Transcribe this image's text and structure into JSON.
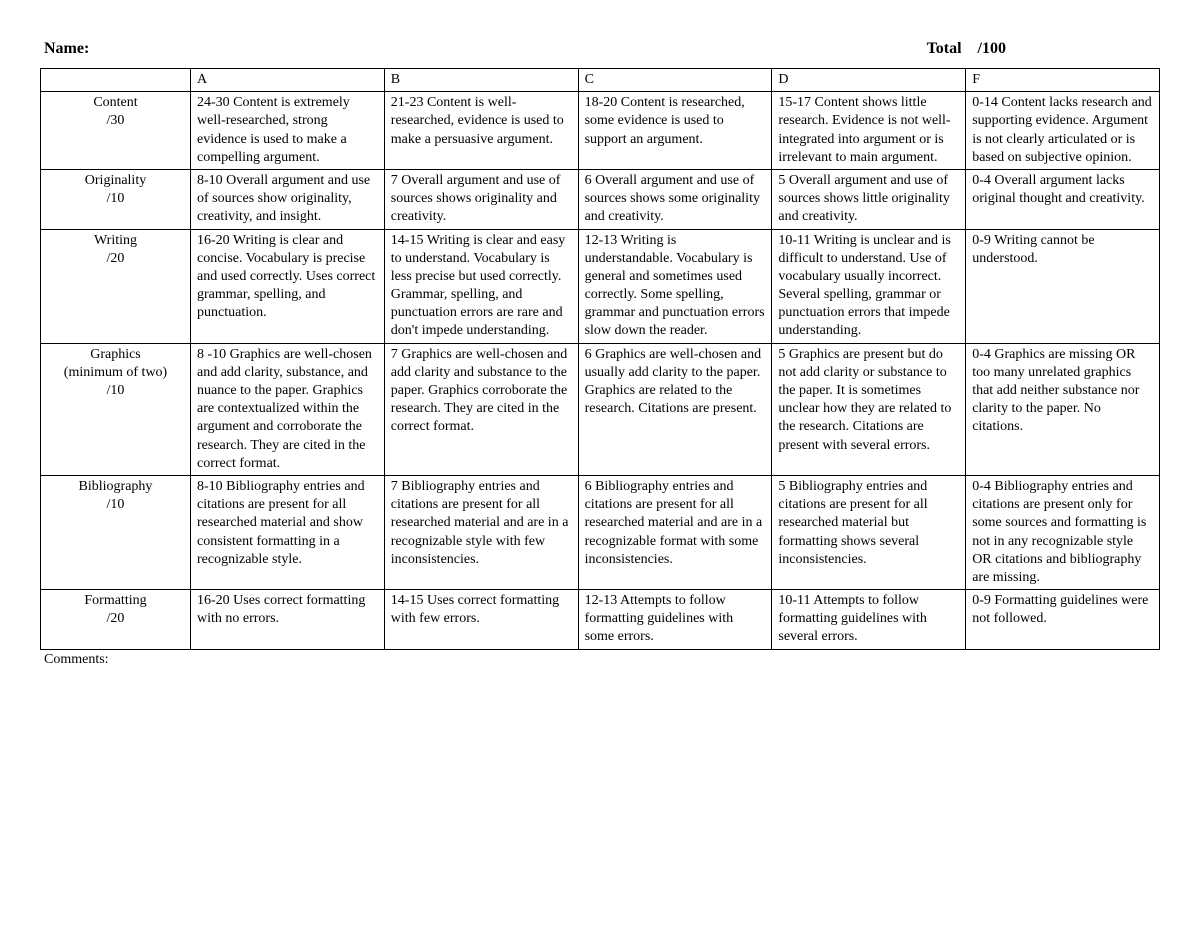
{
  "header": {
    "name_label": "Name:",
    "total_label": "Total",
    "total_value": "/100"
  },
  "columns": [
    "A",
    "B",
    "C",
    "D",
    "F"
  ],
  "rows": [
    {
      "criteria_label": "Content",
      "criteria_points": "/30",
      "cells": [
        "24-30 Content is extremely well-researched, strong evidence is used to make a compelling argument.",
        "21-23 Content is well-researched, evidence is used to make a persuasive argument.",
        "18-20 Content is researched, some evidence is used to support an argument.",
        "15-17 Content shows little research. Evidence is not well-integrated into argument or is irrelevant to main argument.",
        "0-14 Content lacks research and supporting evidence. Argument is not clearly articulated or is based on subjective opinion."
      ]
    },
    {
      "criteria_label": "Originality",
      "criteria_points": "/10",
      "cells": [
        "8-10 Overall argument and use of sources show originality, creativity, and insight.",
        "7 Overall argument and use of sources shows originality and creativity.",
        "6 Overall argument and use of sources shows some originality and creativity.",
        "5 Overall argument and use of sources shows little originality and creativity.",
        "0-4 Overall argument lacks original thought and creativity."
      ]
    },
    {
      "criteria_label": "Writing",
      "criteria_points": "/20",
      "cells": [
        "16-20 Writing is clear and concise. Vocabulary is precise and used correctly. Uses correct grammar, spelling, and punctuation.",
        "14-15 Writing is clear and easy to understand. Vocabulary is less precise but used correctly. Grammar, spelling, and punctuation errors are rare and don't impede understanding.",
        "12-13 Writing is understandable. Vocabulary is general and sometimes used correctly. Some spelling, grammar and punctuation errors slow down the reader.",
        "10-11 Writing is unclear and is difficult to understand. Use of vocabulary usually incorrect. Several spelling, grammar or punctuation errors that impede understanding.",
        "0-9 Writing cannot be understood."
      ]
    },
    {
      "criteria_label": "Graphics",
      "criteria_subtitle": "(minimum of two)",
      "criteria_points": "/10",
      "cells": [
        "8 -10 Graphics are well-chosen and add clarity, substance, and nuance to the paper. Graphics are contextualized within the argument and corroborate the research. They are cited in the correct format.",
        "7 Graphics are well-chosen and add clarity and substance to the paper. Graphics corroborate the research. They are cited in the correct format.",
        "6 Graphics are well-chosen and usually add clarity to the paper. Graphics are related to the research. Citations are present.",
        "5 Graphics are present but do not add clarity or substance to the paper. It is sometimes unclear how they are related to the research. Citations are present with several errors.",
        "0-4 Graphics are missing OR too many unrelated graphics that add neither substance nor clarity to the paper. No citations."
      ]
    },
    {
      "criteria_label": "Bibliography",
      "criteria_points": "/10",
      "cells": [
        "8-10 Bibliography entries and citations are present for all researched material and show consistent formatting in a recognizable style.",
        "7 Bibliography entries and citations are present for all researched material and are in a recognizable style with few inconsistencies.",
        "6 Bibliography entries and citations are present for all researched material and are in a recognizable format with some inconsistencies.",
        "5 Bibliography entries and citations are present for all researched material but formatting shows several inconsistencies.",
        "0-4 Bibliography entries and citations are present only for some sources and formatting is not in any recognizable style OR citations and bibliography are missing."
      ]
    },
    {
      "criteria_label": "Formatting",
      "criteria_points": "/20",
      "cells": [
        "16-20 Uses correct formatting with no errors.",
        "14-15 Uses correct formatting with few errors.",
        "12-13 Attempts to follow formatting guidelines with some errors.",
        "10-11 Attempts to follow formatting guidelines with several errors.",
        "0-9 Formatting guidelines were not followed."
      ]
    }
  ],
  "comments_label": "Comments:"
}
